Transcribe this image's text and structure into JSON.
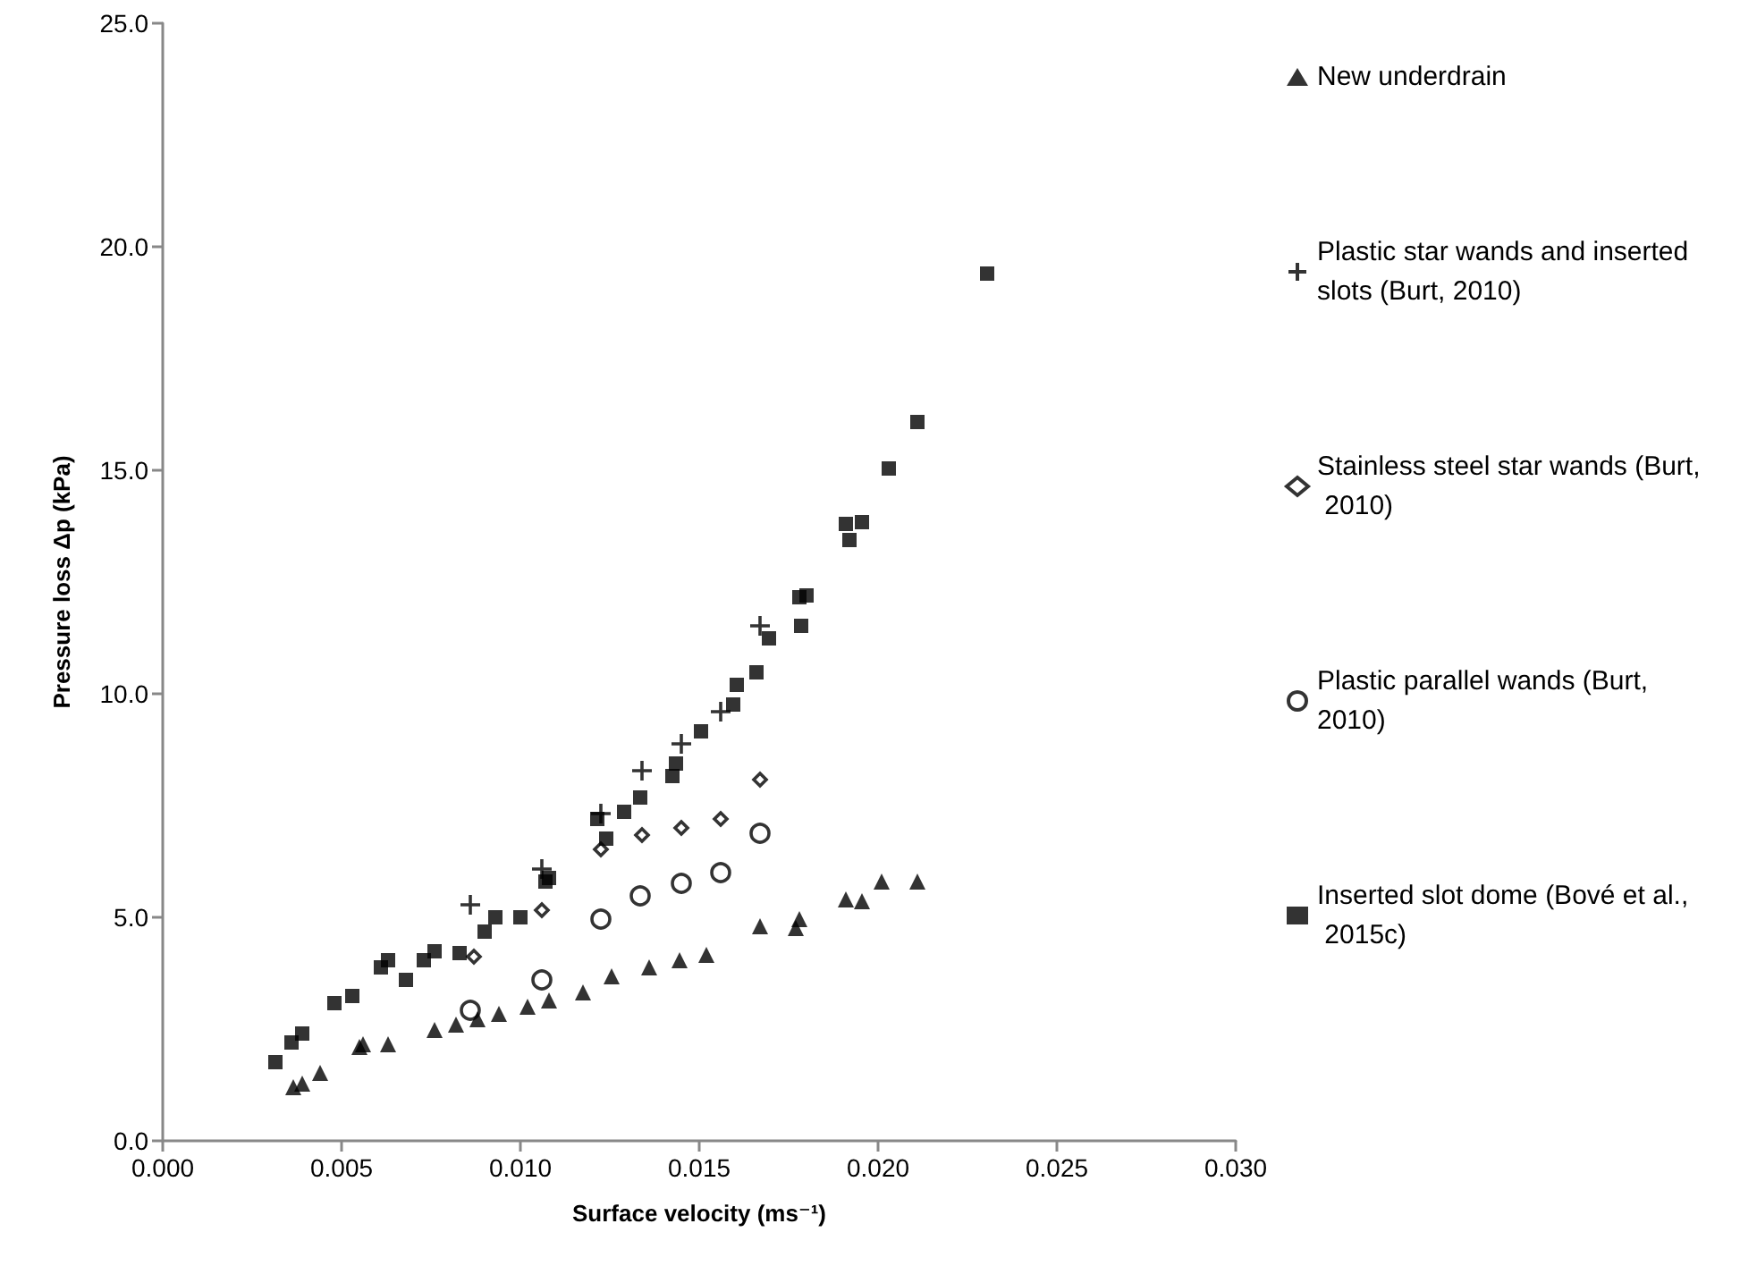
{
  "chart_data": {
    "type": "scatter",
    "xlabel": "Surface velocity (ms⁻¹)",
    "ylabel": "Pressure loss Δp (kPa)",
    "xlim": [
      0,
      0.03
    ],
    "ylim": [
      0,
      25
    ],
    "xticks": [
      {
        "value": 0,
        "label": "0.000"
      },
      {
        "value": 0.005,
        "label": "0.005"
      },
      {
        "value": 0.01,
        "label": "0.010"
      },
      {
        "value": 0.015,
        "label": "0.015"
      },
      {
        "value": 0.02,
        "label": "0.020"
      },
      {
        "value": 0.025,
        "label": "0.025"
      },
      {
        "value": 0.03,
        "label": "0.030"
      }
    ],
    "yticks": [
      {
        "value": 0,
        "label": "0.0"
      },
      {
        "value": 5,
        "label": "5.0"
      },
      {
        "value": 10,
        "label": "10.0"
      },
      {
        "value": 15,
        "label": "15.0"
      },
      {
        "value": 20,
        "label": "20.0"
      },
      {
        "value": 25,
        "label": "25.0"
      }
    ],
    "grid": false,
    "legend": "right",
    "series": [
      {
        "name": "New underdrain",
        "color": "#000000",
        "marker": "triangle",
        "x": [
          0.00365,
          0.0039,
          0.0044,
          0.0055,
          0.0056,
          0.0063,
          0.0076,
          0.0082,
          0.0088,
          0.0094,
          0.0102,
          0.0108,
          0.01175,
          0.01255,
          0.0136,
          0.01445,
          0.0152,
          0.0167,
          0.0177,
          0.0178,
          0.0191,
          0.01955,
          0.0201,
          0.0211
        ],
        "values": [
          1.2,
          1.28,
          1.52,
          2.1,
          2.16,
          2.16,
          2.48,
          2.6,
          2.72,
          2.84,
          3.0,
          3.14,
          3.32,
          3.68,
          3.88,
          4.04,
          4.16,
          4.8,
          4.76,
          4.96,
          5.4,
          5.36,
          5.8,
          5.8
        ]
      },
      {
        "name": "Plastic star wands and inserted slots (Burt, 2010)",
        "color": "#000000",
        "marker": "cross",
        "x": [
          0.0086,
          0.0106,
          0.01225,
          0.0134,
          0.0145,
          0.0156,
          0.0167
        ],
        "values": [
          5.28,
          6.08,
          7.32,
          8.28,
          8.88,
          9.6,
          11.52
        ]
      },
      {
        "name": "Stainless steel star wands (Burt, 2010)",
        "color": "#000000",
        "marker": "diamond",
        "x": [
          0.0087,
          0.0106,
          0.01225,
          0.0134,
          0.0145,
          0.0156,
          0.0167
        ],
        "values": [
          4.12,
          5.16,
          6.52,
          6.84,
          7.0,
          7.2,
          8.08
        ]
      },
      {
        "name": "Plastic parallel wands (Burt, 2010)",
        "color": "#000000",
        "marker": "circle",
        "x": [
          0.0086,
          0.0106,
          0.01225,
          0.01335,
          0.0145,
          0.0156,
          0.0167
        ],
        "values": [
          2.92,
          3.6,
          4.96,
          5.48,
          5.76,
          6.0,
          6.88
        ]
      },
      {
        "name": "Inserted slot dome (Bové et al., 2015c)",
        "color": "#000000",
        "marker": "square",
        "x": [
          0.00315,
          0.0036,
          0.0039,
          0.0048,
          0.0053,
          0.0061,
          0.0063,
          0.0068,
          0.0073,
          0.0076,
          0.0083,
          0.009,
          0.0093,
          0.01,
          0.0107,
          0.0108,
          0.01215,
          0.0124,
          0.0129,
          0.01335,
          0.01425,
          0.01435,
          0.01505,
          0.01595,
          0.01605,
          0.0166,
          0.01695,
          0.01785,
          0.0178,
          0.018,
          0.0191,
          0.0192,
          0.01955,
          0.0203,
          0.0211,
          0.02305
        ],
        "values": [
          1.76,
          2.2,
          2.4,
          3.08,
          3.24,
          3.88,
          4.04,
          3.6,
          4.04,
          4.24,
          4.2,
          4.68,
          5.0,
          5.0,
          5.8,
          5.88,
          7.2,
          6.76,
          7.36,
          7.68,
          8.16,
          8.44,
          9.16,
          9.76,
          10.2,
          10.48,
          11.24,
          11.52,
          12.16,
          12.2,
          13.8,
          13.44,
          13.84,
          15.04,
          16.08,
          19.4
        ]
      }
    ]
  }
}
